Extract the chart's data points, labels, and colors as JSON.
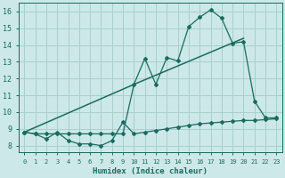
{
  "xlabel": "Humidex (Indice chaleur)",
  "bg_color": "#cce8e8",
  "grid_color": "#aacece",
  "line_color": "#1a6b60",
  "x_ticks": [
    0,
    1,
    2,
    3,
    4,
    5,
    6,
    7,
    8,
    9,
    10,
    11,
    12,
    13,
    14,
    15,
    16,
    17,
    18,
    19,
    20,
    21,
    22,
    23
  ],
  "y_ticks": [
    8,
    9,
    10,
    11,
    12,
    13,
    14,
    15,
    16
  ],
  "ylim": [
    7.6,
    16.5
  ],
  "xlim": [
    -0.5,
    23.5
  ],
  "line1_x": [
    0,
    1,
    2,
    3,
    4,
    5,
    6,
    7,
    8,
    9,
    10,
    11,
    12,
    13,
    14,
    15,
    16,
    17,
    18,
    19,
    20,
    21,
    22,
    23
  ],
  "line1_y": [
    8.8,
    8.7,
    8.4,
    8.8,
    8.3,
    8.1,
    8.1,
    8.0,
    8.3,
    9.4,
    8.7,
    8.8,
    8.9,
    9.0,
    9.1,
    9.2,
    9.3,
    9.35,
    9.4,
    9.45,
    9.5,
    9.5,
    9.55,
    9.6
  ],
  "line2_x": [
    0,
    10,
    20
  ],
  "line2_y": [
    8.8,
    11.65,
    14.4
  ],
  "line3_x": [
    0,
    1,
    2,
    3,
    4,
    5,
    6,
    7,
    8,
    9,
    10,
    11,
    12,
    13,
    14,
    15,
    16,
    17,
    18,
    19,
    20,
    21,
    22,
    23
  ],
  "line3_y": [
    8.8,
    8.7,
    8.7,
    8.7,
    8.7,
    8.7,
    8.7,
    8.7,
    8.7,
    8.7,
    11.65,
    13.2,
    11.65,
    13.25,
    13.05,
    15.1,
    15.65,
    16.1,
    15.6,
    14.1,
    14.2,
    10.65,
    9.65,
    9.65
  ]
}
